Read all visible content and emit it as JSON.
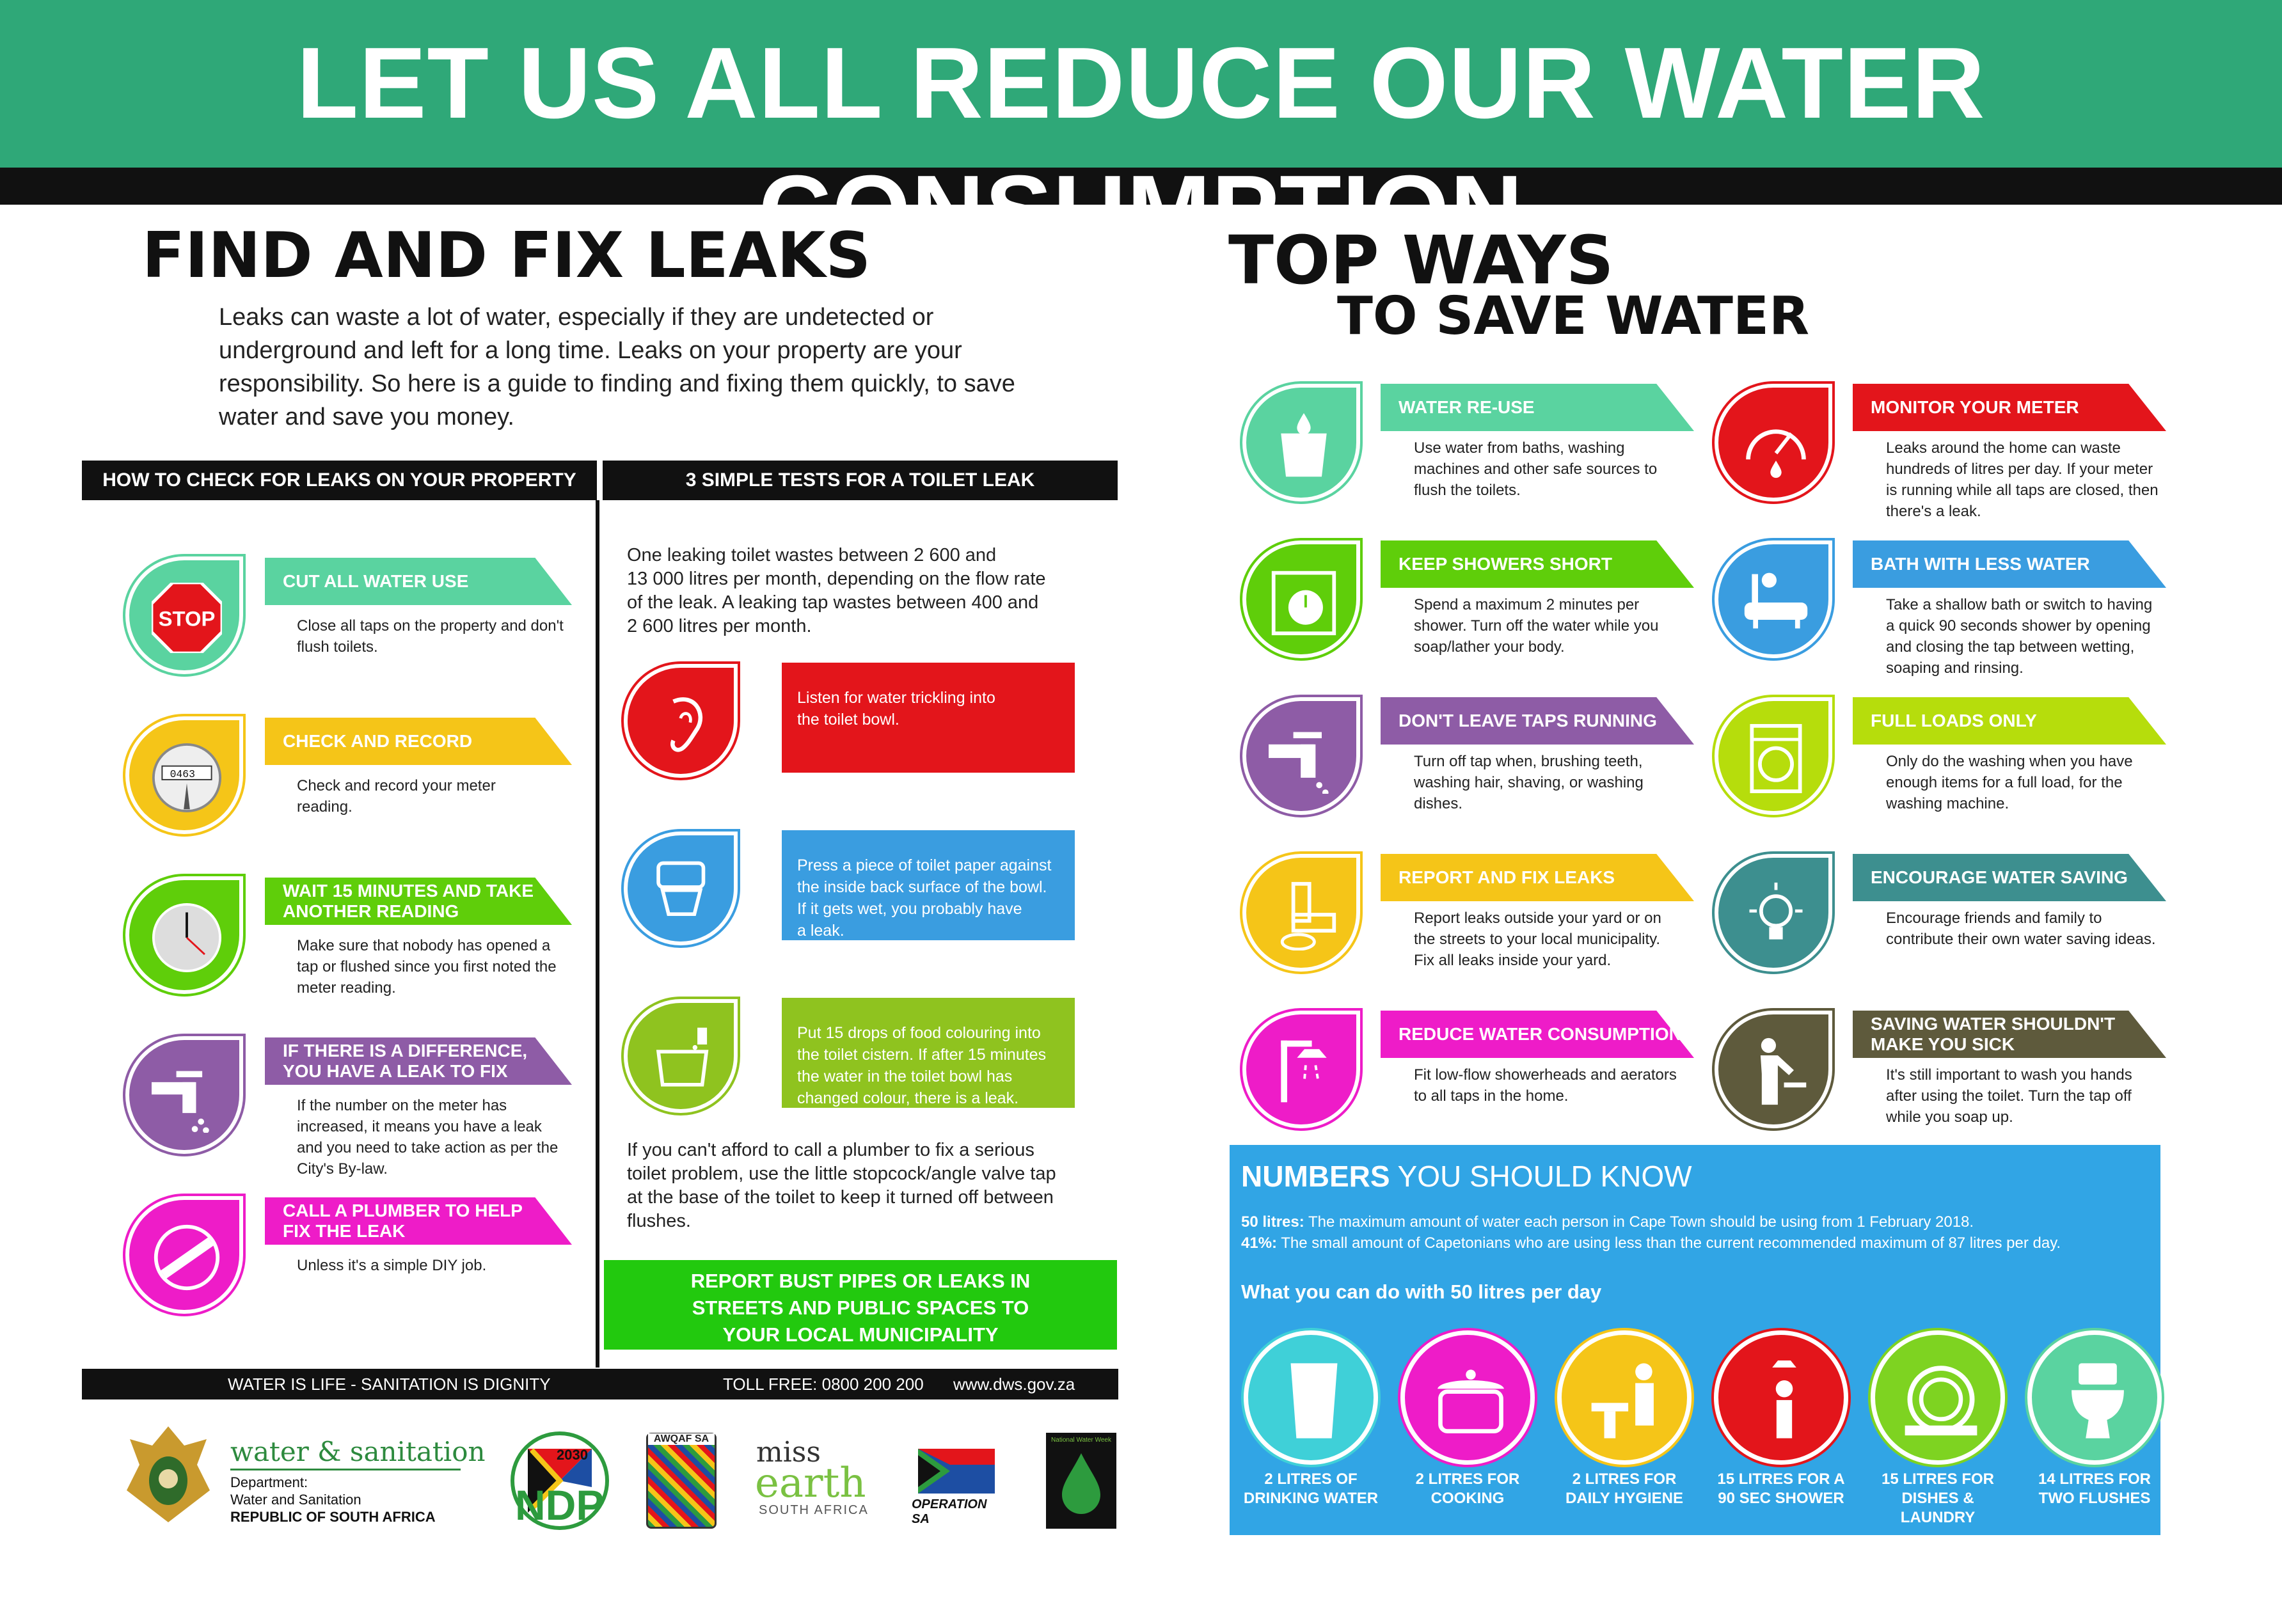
{
  "header": {
    "title": "LET US ALL REDUCE OUR WATER CONSUMPTION"
  },
  "leaks": {
    "title": "FIND AND FIX LEAKS",
    "intro": [
      "Leaks can waste a lot of water, especially if they are undetected or",
      "underground and left for a long time. Leaks on your property are your",
      "responsibility. So here is a guide to finding and fixing them quickly, to save",
      "water and save you money."
    ],
    "check_header": "HOW TO CHECK FOR LEAKS ON YOUR PROPERTY",
    "tests_header": "3 SIMPLE TESTS FOR A TOILET LEAK",
    "steps": [
      {
        "label": [
          "CUT ALL WATER USE"
        ],
        "desc": [
          "Close all taps on the property and don't",
          "flush toilets."
        ],
        "color": "#5ad3a0",
        "icon": "stop-sign-icon",
        "icon_text": "STOP"
      },
      {
        "label": [
          "CHECK AND RECORD"
        ],
        "desc": [
          "Check and record your meter",
          "reading."
        ],
        "color": "#f5c518",
        "icon": "water-meter-icon",
        "icon_text": "0463"
      },
      {
        "label": [
          "WAIT 15 MINUTES AND TAKE",
          "ANOTHER READING"
        ],
        "desc": [
          "Make sure that nobody has opened a",
          "tap or flushed since you first noted the",
          "meter reading."
        ],
        "color": "#5fce0a",
        "icon": "clock-icon"
      },
      {
        "label": [
          "IF THERE IS A DIFFERENCE,",
          "YOU HAVE A LEAK TO FIX"
        ],
        "desc": [
          "If the number on the meter has",
          "increased, it means you have a leak",
          "and you need to take action as per the",
          "City's By-law."
        ],
        "color": "#8e5ca6",
        "icon": "dripping-tap-icon"
      },
      {
        "label": [
          "CALL A PLUMBER TO HELP",
          "FIX THE LEAK"
        ],
        "desc": [
          "Unless it's a simple DIY job."
        ],
        "color": "#ee1cc8",
        "icon": "wrench-hand-icon"
      }
    ],
    "tests_intro": [
      "One leaking toilet wastes between 2 600 and",
      "13 000 litres per month, depending on the flow rate",
      "of the leak. A leaking tap wastes between 400 and",
      "2 600 litres per month."
    ],
    "tests": [
      {
        "text": [
          "Listen for water trickling into",
          "the toilet bowl."
        ],
        "color": "#e3151b",
        "icon": "ear-icon"
      },
      {
        "text": [
          "Press a piece of toilet paper against",
          "the inside back surface of the bowl.",
          "If it gets wet, you probably have",
          "a leak."
        ],
        "color": "#3a9de0",
        "icon": "toilet-paper-icon"
      },
      {
        "text": [
          "Put 15 drops of food colouring into",
          "the toilet cistern. If after 15 minutes",
          "the water in the toilet bowl has",
          "changed colour, there is a leak."
        ],
        "color": "#8fc31f",
        "icon": "food-colouring-toilet-icon"
      }
    ],
    "tests_footer": [
      "If you can't afford to call a plumber to fix a serious",
      "toilet problem, use the little stopcock/angle valve tap",
      "at the base of the toilet to keep it turned off between",
      "flushes."
    ],
    "report_box": [
      "REPORT BUST PIPES OR LEAKS IN",
      "STREETS AND PUBLIC SPACES TO",
      "YOUR LOCAL MUNICIPALITY"
    ],
    "footer": {
      "slogan": "WATER IS LIFE - SANITATION IS DIGNITY",
      "tollfree": "TOLL FREE: 0800 200 200",
      "web": "www.dws.gov.za"
    }
  },
  "logos": {
    "dept_name": "water & sanitation",
    "dept_sub": [
      "Department:",
      "Water and Sanitation"
    ],
    "dept_country": "REPUBLIC OF SOUTH AFRICA",
    "ndp_year": "2030",
    "ndp": "NDP",
    "awqaf": "AWQAF SA",
    "miss": "miss",
    "earth": "earth",
    "sa": "SOUTH AFRICA",
    "operation": "OPERATION SA",
    "nww": "National Water Week"
  },
  "topways": {
    "title1": "TOP WAYS",
    "title2": "TO SAVE WATER",
    "items": [
      {
        "label": [
          "WATER RE-USE"
        ],
        "desc": [
          "Use water from baths, washing",
          "machines and other safe sources to",
          "flush the toilets."
        ],
        "color": "#5ad3a0",
        "icon": "bucket-icon"
      },
      {
        "label": [
          "MONITOR YOUR METER"
        ],
        "desc": [
          "Leaks around the home can waste",
          "hundreds of litres per day. If your meter",
          "is running while all taps are closed, then",
          "there's a leak."
        ],
        "color": "#e3151b",
        "icon": "meter-gauge-icon"
      },
      {
        "label": [
          "KEEP SHOWERS SHORT"
        ],
        "desc": [
          "Spend a maximum 2 minutes per",
          "shower. Turn off the water while you",
          "soap/lather your body."
        ],
        "color": "#5fce0a",
        "icon": "shower-timer-icon"
      },
      {
        "label": [
          "BATH WITH LESS WATER"
        ],
        "desc": [
          "Take a shallow bath or switch to having",
          "a quick 90 seconds shower by opening",
          "and closing the tap between wetting,",
          "soaping and rinsing."
        ],
        "color": "#3a9de0",
        "icon": "bathtub-icon"
      },
      {
        "label": [
          "DON'T LEAVE TAPS RUNNING"
        ],
        "desc": [
          "Turn off tap when, brushing teeth,",
          "washing hair, shaving, or washing",
          "dishes."
        ],
        "color": "#8e5ca6",
        "icon": "tap-icon"
      },
      {
        "label": [
          "FULL LOADS ONLY"
        ],
        "desc": [
          "Only do the washing when you have",
          "enough items for a full load, for the",
          "washing machine."
        ],
        "color": "#b6dd0c",
        "icon": "washing-machine-icon"
      },
      {
        "label": [
          "REPORT AND FIX LEAKS"
        ],
        "desc": [
          "Report leaks outside your yard or on",
          "the streets to your local municipality.",
          "Fix all leaks inside your yard."
        ],
        "color": "#f5c518",
        "icon": "pipe-leak-icon"
      },
      {
        "label": [
          "ENCOURAGE WATER SAVING"
        ],
        "desc": [
          "Encourage friends and family to",
          "contribute their own water saving ideas."
        ],
        "color": "#3d8f8f",
        "icon": "lightbulb-icon"
      },
      {
        "label": [
          "REDUCE WATER CONSUMPTION"
        ],
        "desc": [
          "Fit low-flow showerheads and aerators",
          "to all taps in the home."
        ],
        "color": "#ee1cc8",
        "icon": "showerhead-icon"
      },
      {
        "label": [
          "SAVING WATER SHOULDN'T",
          "MAKE YOU SICK"
        ],
        "desc": [
          "It's still important to wash you hands",
          "after using the toilet. Turn the tap off",
          "while you soap up."
        ],
        "color": "#5e5a3c",
        "icon": "handwashing-icon"
      }
    ]
  },
  "numbers": {
    "title_bold": "NUMBERS",
    "title_rest": " YOU SHOULD KNOW",
    "fact1_bold": "50 litres:",
    "fact1": " The maximum amount of water each person in Cape Town should be using from 1 February 2018.",
    "fact2_bold": "41%:",
    "fact2": " The small amount of Capetonians who are using less than the current recommended maximum of 87 litres per day.",
    "subtitle": "What you can do with 50 litres per day",
    "uses": [
      {
        "label": [
          "2 LITRES OF",
          "DRINKING WATER"
        ],
        "color": "#3fd0d8",
        "icon": "glass-icon"
      },
      {
        "label": [
          "2 LITRES FOR",
          "COOKING"
        ],
        "color": "#ee1cc8",
        "icon": "cooking-pot-icon"
      },
      {
        "label": [
          "2 LITRES FOR",
          "DAILY HYGIENE"
        ],
        "color": "#f5c518",
        "icon": "hygiene-icon"
      },
      {
        "label": [
          "15 LITRES FOR A",
          "90 SEC SHOWER"
        ],
        "color": "#e3151b",
        "icon": "shower-person-icon"
      },
      {
        "label": [
          "15 LITRES FOR",
          "DISHES &",
          "LAUNDRY"
        ],
        "color": "#7ed321",
        "icon": "dishes-icon"
      },
      {
        "label": [
          "14 LITRES FOR",
          "TWO FLUSHES"
        ],
        "color": "#5ad3a0",
        "icon": "toilet-icon"
      }
    ]
  }
}
